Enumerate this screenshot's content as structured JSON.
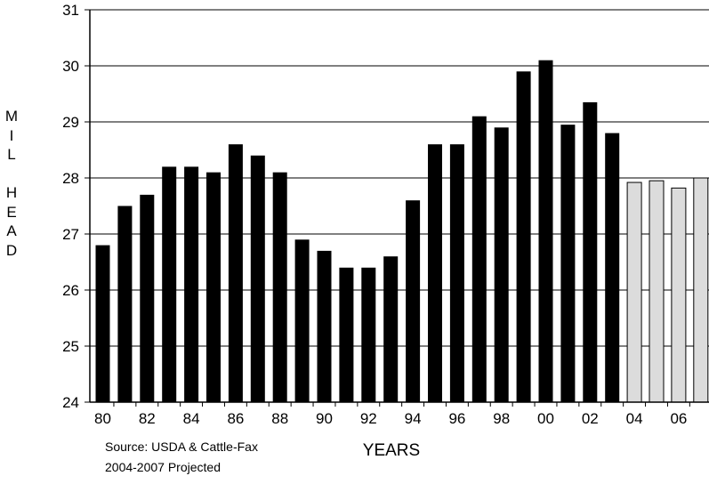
{
  "chart_data": {
    "type": "bar",
    "title": "",
    "xlabel": "YEARS",
    "ylabel": "MIL HEAD",
    "ylim": [
      24,
      31
    ],
    "yticks": [
      24,
      25,
      26,
      27,
      28,
      29,
      30,
      31
    ],
    "grid": true,
    "categories": [
      "80",
      "81",
      "82",
      "83",
      "84",
      "85",
      "86",
      "87",
      "88",
      "89",
      "90",
      "91",
      "92",
      "93",
      "94",
      "95",
      "96",
      "97",
      "98",
      "99",
      "00",
      "01",
      "02",
      "03",
      "04",
      "05",
      "06",
      "07"
    ],
    "x_tick_labels": [
      "80",
      "82",
      "84",
      "86",
      "88",
      "90",
      "92",
      "94",
      "96",
      "98",
      "00",
      "02",
      "04",
      "06"
    ],
    "series": [
      {
        "values": [
          26.8,
          27.5,
          27.7,
          28.2,
          28.2,
          28.1,
          28.6,
          28.4,
          28.1,
          26.9,
          26.7,
          26.4,
          26.4,
          26.6,
          27.6,
          28.6,
          28.6,
          29.1,
          28.9,
          29.9,
          30.1,
          28.95,
          29.35,
          28.8,
          27.92,
          27.95,
          27.82,
          28.0
        ],
        "projected_from_index": 24
      }
    ],
    "colors": {
      "actual": "#000000",
      "projected": "#dcdcdc",
      "grid": "#000000"
    }
  },
  "y_axis_title_letters": [
    "M",
    "I",
    "L",
    "",
    "H",
    "E",
    "A",
    "D"
  ],
  "notes": {
    "source": "Source: USDA & Cattle-Fax",
    "projection": "2004-2007 Projected"
  }
}
